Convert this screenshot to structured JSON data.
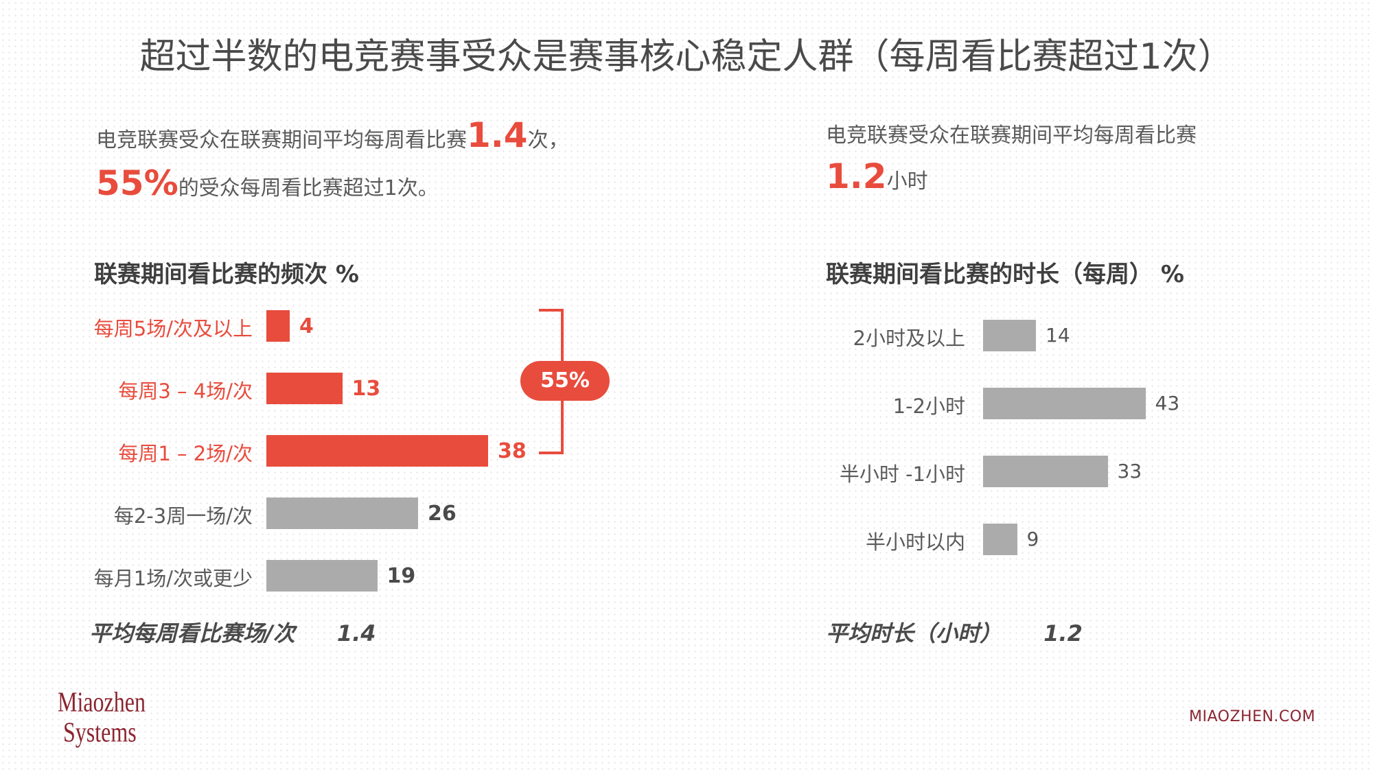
{
  "title": "超过半数的电竞赛事受众是赛事核心稳定人群（每周看比赛超过1次）",
  "left_summary": {
    "line1_prefix": "电竞联赛受众在联赛期间平均每周看比赛",
    "line1_value": "1.4",
    "line1_suffix": "次，",
    "line2_value": "55%",
    "line2_suffix": "的受众每周看比赛超过1次。"
  },
  "right_summary": {
    "line1": "电竞联赛受众在联赛期间平均每周看比赛",
    "value": "1.2",
    "unit": "小时"
  },
  "bracket_label": "55%",
  "colors": {
    "accent": "#e84c3d",
    "bar_gray": "#ababab",
    "logo": "#8b2530"
  },
  "logo": {
    "line1": "Miaozhen",
    "line2": "Systems"
  },
  "footer_url": "MIAOZHEN.COM",
  "chart_data": [
    {
      "type": "bar",
      "orientation": "horizontal",
      "title": "联赛期间看比赛的频次 %",
      "categories": [
        "每周5场/次及以上",
        "每周3 – 4场/次",
        "每周1 – 2场/次",
        "每2-3周一场/次",
        "每月1场/次或更少"
      ],
      "values": [
        4,
        13,
        38,
        26,
        19
      ],
      "value_labels": [
        "4",
        "13",
        "38",
        "26",
        "19"
      ],
      "highlight": [
        true,
        true,
        true,
        false,
        false
      ],
      "average_label": "平均每周看比赛场/次",
      "average_value": "1.4"
    },
    {
      "type": "bar",
      "orientation": "horizontal",
      "title": "联赛期间看比赛的时长（每周） %",
      "categories": [
        "2小时及以上",
        "1-2小时",
        "半小时 -1小时",
        "半小时以内"
      ],
      "values": [
        14,
        43,
        33,
        9
      ],
      "value_labels": [
        "14",
        "43",
        "33",
        "9"
      ],
      "average_label": "平均时长（小时）",
      "average_value": "1.2"
    }
  ]
}
